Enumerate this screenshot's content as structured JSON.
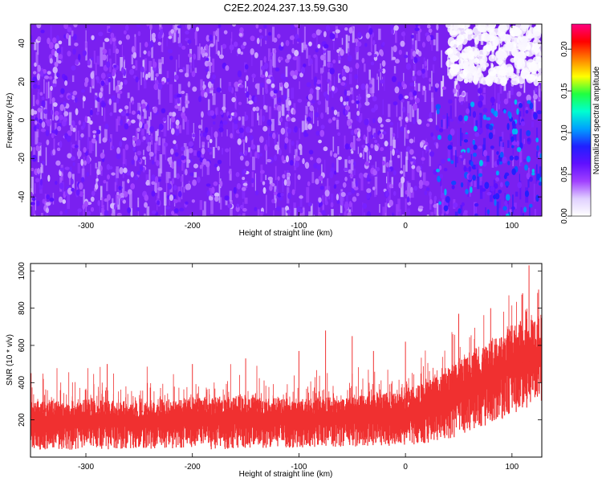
{
  "figure": {
    "title": "C2E2.2024.237.13.59.G30"
  },
  "chart_data": [
    {
      "type": "heatmap",
      "title": "C2E2.2024.237.13.59.G30",
      "xlabel": "Height of straight line (km)",
      "ylabel": "Frequency (Hz)",
      "xlim": [
        -352,
        128
      ],
      "ylim": [
        -50,
        50
      ],
      "x_ticks": [
        -300,
        -200,
        -100,
        0,
        100
      ],
      "y_ticks": [
        -40,
        -20,
        0,
        20,
        40
      ],
      "x_tick_labels": [
        "-300",
        "-200",
        "-100",
        "0",
        "100"
      ],
      "y_tick_labels": [
        "-40",
        "-20",
        "0",
        "20",
        "40"
      ],
      "colorbar": {
        "label": "Normalized spectral amplitude",
        "range": [
          0,
          0.23
        ],
        "ticks": [
          0.0,
          0.05,
          0.1,
          0.15,
          0.2
        ],
        "tick_labels": [
          "0.00",
          "0.05",
          "0.10",
          "0.15",
          "0.20"
        ],
        "colors": [
          "#ffffff",
          "#e0d0ff",
          "#a040ff",
          "#6010ff",
          "#2020ff",
          "#00a0ff",
          "#00ffd0",
          "#20ff40",
          "#ffff00",
          "#ff8000",
          "#ff0000",
          "#ff0080"
        ]
      },
      "description_regions": [
        {
          "x_range": [
            -352,
            128
          ],
          "y_range": [
            -50,
            50
          ],
          "typical_value": 0.04
        },
        {
          "x_range": [
            30,
            128
          ],
          "y_range": [
            -50,
            10
          ],
          "typical_value": 0.07
        },
        {
          "x_range": [
            30,
            128
          ],
          "y_range": [
            20,
            50
          ],
          "typical_value": 0.005
        }
      ],
      "grid": false
    },
    {
      "type": "line",
      "xlabel": "Height of straight line (km)",
      "ylabel": "SNR (10 * v/v)",
      "xlim": [
        -352,
        128
      ],
      "ylim": [
        0,
        1040
      ],
      "x_ticks": [
        -300,
        -200,
        -100,
        0,
        100
      ],
      "y_ticks": [
        200,
        400,
        600,
        800,
        1000
      ],
      "x_tick_labels": [
        "-300",
        "-200",
        "-100",
        "0",
        "100"
      ],
      "y_tick_labels": [
        "200",
        "400",
        "600",
        "800",
        "1000"
      ],
      "series_color": "#f03030",
      "envelope": {
        "x": [
          -350,
          -300,
          -250,
          -200,
          -150,
          -100,
          -50,
          0,
          25,
          50,
          75,
          100,
          128
        ],
        "upper": [
          300,
          310,
          300,
          320,
          330,
          310,
          330,
          360,
          420,
          520,
          600,
          700,
          760
        ],
        "lower": [
          40,
          40,
          45,
          40,
          45,
          50,
          55,
          60,
          80,
          110,
          160,
          230,
          300
        ]
      },
      "peaks": [
        {
          "x": -340,
          "y": 420
        },
        {
          "x": -280,
          "y": 500
        },
        {
          "x": -200,
          "y": 500
        },
        {
          "x": -150,
          "y": 530
        },
        {
          "x": -100,
          "y": 570
        },
        {
          "x": -75,
          "y": 680
        },
        {
          "x": -50,
          "y": 650
        },
        {
          "x": -30,
          "y": 570
        },
        {
          "x": 0,
          "y": 620
        },
        {
          "x": 50,
          "y": 770
        },
        {
          "x": 80,
          "y": 800
        },
        {
          "x": 110,
          "y": 880
        },
        {
          "x": 116,
          "y": 1030
        },
        {
          "x": 125,
          "y": 900
        }
      ],
      "grid": false
    }
  ]
}
